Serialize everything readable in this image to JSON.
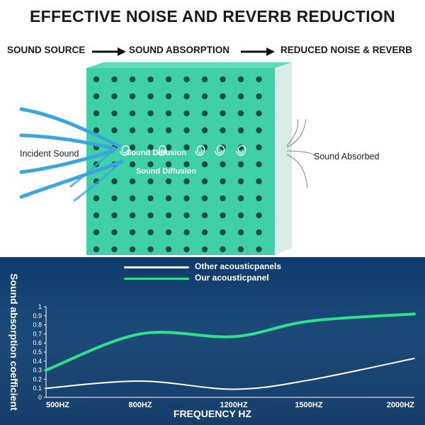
{
  "header": {
    "title": "EFFECTIVE NOISE AND REVERB REDUCTION",
    "flow": [
      "SOUND SOURCE",
      "SOUND ABSORPTION",
      "REDUCED NOISE & REVERB"
    ]
  },
  "diagram": {
    "incident_label": "Incident Sound",
    "diffusion_label_1": "Sound Diffusion",
    "diffusion_label_2": "Sound Diffusion",
    "absorbed_label": "Sound Absorbed"
  },
  "colors": {
    "foam": "#3fd0a8",
    "foam_dark": "#2aa887",
    "foam_side": "#cfe6de",
    "incident": "#3aa6e0",
    "our_line": "#2ee08a",
    "other_line": "#ffffff",
    "chart_bg": "#163e6b"
  },
  "icons": [
    "arrow-right-icon",
    "spiral-icon"
  ],
  "chart_data": {
    "type": "line",
    "xlabel": "FREQUENCY HZ",
    "ylabel": "Sound absorption coefficient",
    "x": [
      "500HZ",
      "800HZ",
      "1200HZ",
      "1500HZ",
      "2000HZ"
    ],
    "y_ticks": [
      "0",
      "0.1",
      "0.2",
      "0.3",
      "0.4",
      "0.5",
      "0.6",
      "0.7",
      "0.8",
      "0.9",
      "1"
    ],
    "ylim": [
      0,
      1
    ],
    "series": [
      {
        "name": "Other acousticpanels",
        "values": [
          0.1,
          0.18,
          0.09,
          0.19,
          0.43
        ]
      },
      {
        "name": "Our acousticpanel",
        "values": [
          0.3,
          0.7,
          0.67,
          0.84,
          0.92
        ]
      }
    ]
  }
}
